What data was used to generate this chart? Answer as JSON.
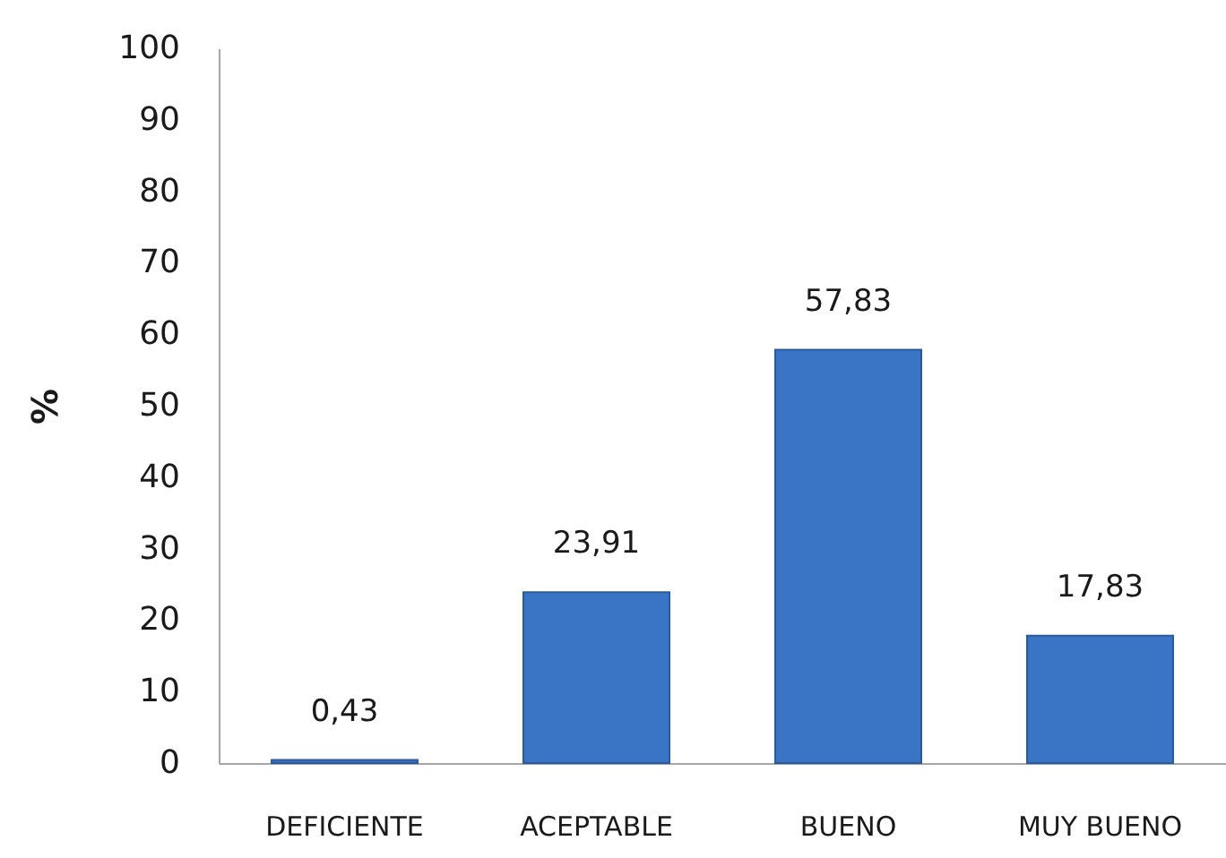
{
  "chart_data": {
    "type": "bar",
    "ylabel": "%",
    "categories": [
      "DEFICIENTE",
      "ACEPTABLE",
      "BUENO",
      "MUY BUENO"
    ],
    "values": [
      0.43,
      23.91,
      57.83,
      17.83
    ],
    "value_labels": [
      "0,43",
      "23,91",
      "57,83",
      "17,83"
    ],
    "color": "#3a74c4",
    "ylim": [
      0,
      100
    ],
    "yticks": [
      0,
      10,
      20,
      30,
      40,
      50,
      60,
      70,
      80,
      90,
      100
    ],
    "grid": false
  }
}
